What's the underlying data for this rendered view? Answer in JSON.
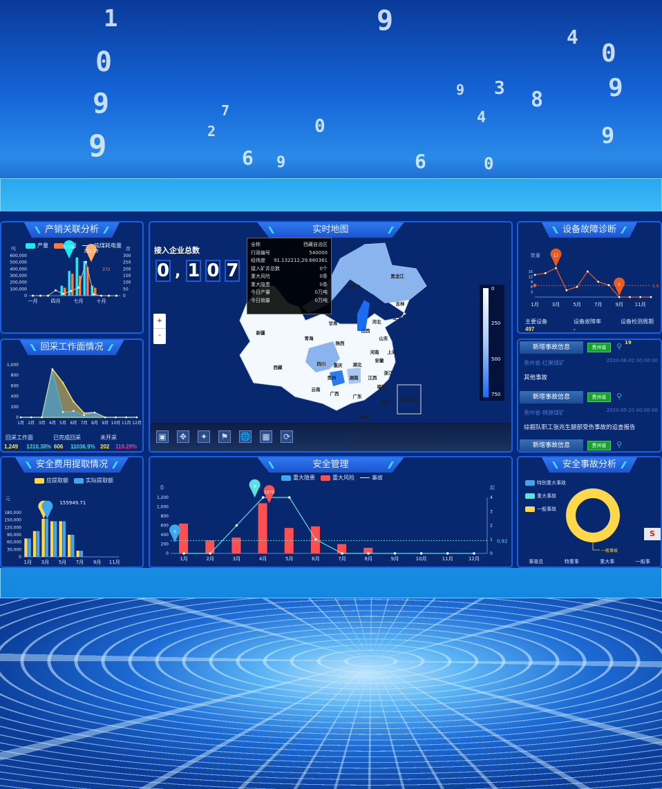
{
  "background_digits": [
    "1",
    "0",
    "9",
    "9",
    "7",
    "9",
    "0",
    "9",
    "3",
    "4",
    "0",
    "9",
    "8",
    "9",
    "6",
    "9",
    "6",
    "0",
    "2",
    "4"
  ],
  "panels": {
    "production_sales": {
      "title": "产销关联分析",
      "legend": [
        "产量",
        "销量",
        "吨煤耗电量"
      ],
      "left_unit": "吨",
      "right_unit": "度",
      "pin_labels": [
        "573%",
        "252.13",
        "372"
      ]
    },
    "mining_face": {
      "title": "回采工作面情况",
      "stats": [
        {
          "label": "回采工作面",
          "values": [
            "1,249"
          ]
        },
        {
          "label": "已完成回采",
          "values": [
            "1310.38%",
            "606"
          ]
        },
        {
          "label": "未开采",
          "values": [
            "11036.9%",
            "202"
          ]
        }
      ],
      "extra_value": "119.29%"
    },
    "safety_fee": {
      "title": "安全费用提取情况",
      "legend": [
        "应提取额",
        "实际提取额"
      ],
      "unit": "元",
      "pin_label": "155949.71"
    },
    "map": {
      "title": "实时地图",
      "total_label": "接入企业总数",
      "digits": [
        "0",
        ",",
        "1",
        "0",
        "7"
      ],
      "tooltip": [
        {
          "k": "全称",
          "v": "西藏自治区"
        },
        {
          "k": "行政编号",
          "v": "540000"
        },
        {
          "k": "经纬度",
          "v": "91.132212,29.660361"
        },
        {
          "k": "接入矿井总数",
          "v": "0个"
        },
        {
          "k": "重大风险",
          "v": "0条"
        },
        {
          "k": "重大隐患",
          "v": "0条"
        },
        {
          "k": "今日产量",
          "v": "0万吨"
        },
        {
          "k": "今日销量",
          "v": "0万吨"
        }
      ],
      "zoom_in": "+",
      "zoom_out": "-",
      "provinces": [
        "黑龙江",
        "内蒙古",
        "吉林",
        "辽宁",
        "河北",
        "山西",
        "山东",
        "甘肃",
        "青海",
        "陕西",
        "河南",
        "西藏",
        "四川",
        "重庆",
        "湖北",
        "安徽",
        "上海",
        "浙江",
        "贵州",
        "湖南",
        "江西",
        "云南",
        "广西",
        "广东",
        "福建",
        "台湾",
        "海南",
        "南海诸岛",
        "新疆"
      ],
      "scale_ticks": [
        "0",
        "250",
        "500",
        "750"
      ],
      "toolbar": [
        "fullscreen-icon",
        "expand-icon",
        "collapse-icon",
        "map-icon",
        "globe-icon",
        "building-icon",
        "refresh-icon"
      ]
    },
    "safety_mgmt": {
      "title": "安全管理",
      "legend": [
        "重大隐患",
        "重大风险",
        "事故"
      ],
      "left_unit": "条",
      "right_unit": "起",
      "pin_labels": [
        "4",
        "1075",
        "0"
      ],
      "avg_label": "0.92"
    },
    "equipment": {
      "title": "设备故障诊断",
      "y_label": "数量",
      "avg_label": "6.8",
      "pins": [
        "17",
        "0"
      ],
      "stats": [
        {
          "label": "主要设备",
          "value": "497"
        },
        {
          "label": "设备故障率",
          "value": "-"
        },
        {
          "label": "设备检测周期",
          "value": "19"
        }
      ]
    },
    "news": {
      "items": [
        {
          "header": "新增事故信息",
          "tag": "贵州省",
          "mine": "贵州省-红果煤矿",
          "date": "2020-06-02 00:00:00",
          "text": "其他事故"
        },
        {
          "header": "新增事故信息",
          "tag": "贵州省",
          "mine": "贵州省-锦源煤矿",
          "date": "2020-05-20 00:00:00",
          "text": "综掘队职工张兆生腿部受伤事故的追查报告"
        },
        {
          "header": "新增事故信息",
          "tag": "贵州省"
        }
      ]
    },
    "accident": {
      "title": "安全事故分析",
      "legend": [
        "特别重大事故",
        "重大事故",
        "一般事故"
      ],
      "donut_label": "一般事故",
      "bottom": [
        "事故总",
        "特重事",
        "重大事",
        "一般事"
      ],
      "side_button": "S"
    }
  },
  "colors": {
    "cyan": "#1ee8f0",
    "orange": "#ff7a3a",
    "yellow": "#ffd84a",
    "blue": "#3fa8ec",
    "red": "#ff5050",
    "teal": "#5ee0e0",
    "accent": "#e85a20"
  },
  "chart_data": [
    {
      "type": "bar",
      "id": "production_sales",
      "x": [
        "一月",
        "二月",
        "三月",
        "四月",
        "五月",
        "六月",
        "七月",
        "八月",
        "九月",
        "十月",
        "十一月",
        "十二月"
      ],
      "xticks": [
        "一月",
        "四月",
        "七月",
        "十月"
      ],
      "series": [
        {
          "name": "产量",
          "values": [
            0,
            0,
            0,
            0,
            150000,
            370000,
            573000,
            520000,
            150000,
            0,
            0,
            0
          ]
        },
        {
          "name": "销量",
          "values": [
            0,
            0,
            0,
            0,
            120000,
            330000,
            300000,
            430000,
            120000,
            0,
            0,
            0
          ]
        },
        {
          "name": "吨煤耗电量",
          "type": "line",
          "axis": "right",
          "values": [
            0,
            0,
            0,
            40,
            15,
            35,
            60,
            252,
            10,
            0,
            0,
            0
          ]
        }
      ],
      "ylim": [
        0,
        600000
      ],
      "yticks": [
        "0",
        "100,000",
        "200,000",
        "300,000",
        "400,000",
        "500,000",
        "600,000"
      ],
      "y2lim": [
        0,
        300
      ],
      "y2ticks": [
        "0",
        "50",
        "100",
        "150",
        "200",
        "250",
        "300"
      ]
    },
    {
      "type": "area",
      "id": "mining_face",
      "x": [
        "1月",
        "2月",
        "3月",
        "4月",
        "5月",
        "6月",
        "7月",
        "8月",
        "9月",
        "10月",
        "11月",
        "12月"
      ],
      "series": [
        {
          "values": [
            0,
            0,
            0,
            920,
            660,
            300,
            80,
            90,
            0,
            0,
            0,
            0
          ]
        },
        {
          "values": [
            0,
            0,
            0,
            900,
            100,
            120,
            40,
            90,
            0,
            0,
            0,
            0
          ]
        }
      ],
      "ylim": [
        0,
        1000
      ],
      "yticks": [
        "0",
        "200",
        "400",
        "600",
        "800",
        "1,000"
      ]
    },
    {
      "type": "bar",
      "id": "safety_fee",
      "x": [
        "1月",
        "2月",
        "3月",
        "4月",
        "5月",
        "6月",
        "7月",
        "8月",
        "9月",
        "10月",
        "11月"
      ],
      "xticks": [
        "1月",
        "3月",
        "5月",
        "7月",
        "9月",
        "11月"
      ],
      "series": [
        {
          "name": "应提取额",
          "values": [
            75000,
            105000,
            155000,
            145000,
            145000,
            90000,
            25000,
            0,
            0,
            0,
            0
          ]
        },
        {
          "name": "实际提取额",
          "values": [
            75000,
            105000,
            155000,
            145000,
            145000,
            90000,
            25000,
            0,
            0,
            0,
            0
          ]
        }
      ],
      "ylim": [
        0,
        180000
      ],
      "yticks": [
        "0",
        "30,000",
        "60,000",
        "90,000",
        "120,000",
        "150,000",
        "180,000"
      ]
    },
    {
      "type": "bar",
      "id": "safety_mgmt",
      "x": [
        "1月",
        "2月",
        "3月",
        "4月",
        "5月",
        "6月",
        "7月",
        "8月",
        "9月",
        "10月",
        "11月",
        "12月"
      ],
      "series": [
        {
          "name": "重大隐患",
          "values": [
            0,
            0,
            0,
            0,
            0,
            0,
            0,
            0,
            0,
            0,
            0,
            0
          ]
        },
        {
          "name": "重大风险",
          "values": [
            640,
            280,
            340,
            1075,
            545,
            580,
            200,
            120,
            0,
            0,
            0,
            0
          ]
        },
        {
          "name": "事故",
          "type": "line",
          "axis": "right",
          "values": [
            0,
            0,
            2,
            4,
            4,
            1,
            0,
            0,
            0,
            0,
            0,
            0
          ]
        }
      ],
      "ylim": [
        0,
        1200
      ],
      "yticks": [
        "0",
        "200",
        "400",
        "600",
        "800",
        "1,000",
        "1,200"
      ],
      "y2lim": [
        0,
        4
      ],
      "y2ticks": [
        "0",
        "1",
        "2",
        "3",
        "4"
      ],
      "average": 0.92
    },
    {
      "type": "line",
      "id": "equipment",
      "x": [
        "1月",
        "2月",
        "3月",
        "4月",
        "5月",
        "6月",
        "7月",
        "8月",
        "9月",
        "10月",
        "11月",
        "12月"
      ],
      "xticks": [
        "1月",
        "3月",
        "5月",
        "7月",
        "9月",
        "11月"
      ],
      "series": [
        {
          "values": [
            13,
            14,
            17,
            4,
            6,
            15,
            9,
            7,
            0,
            0,
            0,
            0
          ]
        }
      ],
      "ylim": [
        0,
        17
      ],
      "yticks": [
        "3",
        "6",
        "9",
        "12",
        "15"
      ],
      "average": 6.8
    },
    {
      "type": "pie",
      "id": "accident",
      "labels": [
        "特别重大事故",
        "重大事故",
        "一般事故"
      ],
      "values": [
        0,
        0,
        1
      ]
    }
  ]
}
